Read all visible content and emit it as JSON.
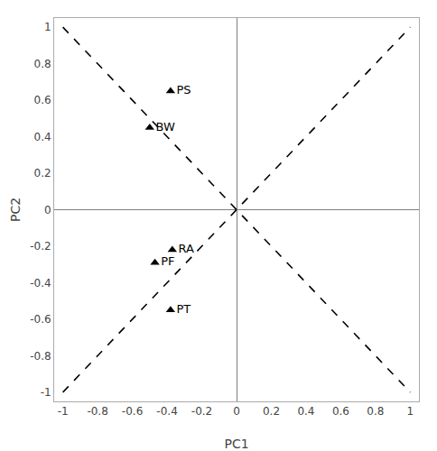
{
  "chart_data": {
    "type": "scatter",
    "x_label": "PC1",
    "y_label": "PC2",
    "x": [
      -0.38,
      -0.5,
      -0.37,
      -0.47,
      -0.38
    ],
    "values": [
      0.65,
      0.45,
      -0.22,
      -0.29,
      -0.55
    ],
    "labels": [
      "PS",
      "BW",
      "RA",
      "PF",
      "PT"
    ],
    "color": "black",
    "marker": "triangle-up",
    "reference_lines": [
      {
        "x": [
          -1.0,
          1.0
        ],
        "y": [
          1.0,
          -1.0
        ],
        "line_style": "dashed",
        "color": "black"
      },
      {
        "x": [
          -1.0,
          1.0
        ],
        "y": [
          -1.0,
          1.0
        ],
        "line_style": "dashed",
        "color": "black"
      }
    ],
    "xlim": [
      -1.05,
      1.05
    ],
    "ylim": [
      -1.05,
      1.05
    ],
    "xticks": [
      -1.0,
      -0.8,
      -0.6,
      -0.4,
      -0.2,
      0.0,
      0.2,
      0.4,
      0.6,
      0.8,
      1.0
    ],
    "yticks": [
      -1.0,
      -0.8,
      -0.6,
      -0.4,
      -0.2,
      0.0,
      0.2,
      0.4,
      0.6,
      0.8,
      1.0
    ],
    "grid": false
  }
}
